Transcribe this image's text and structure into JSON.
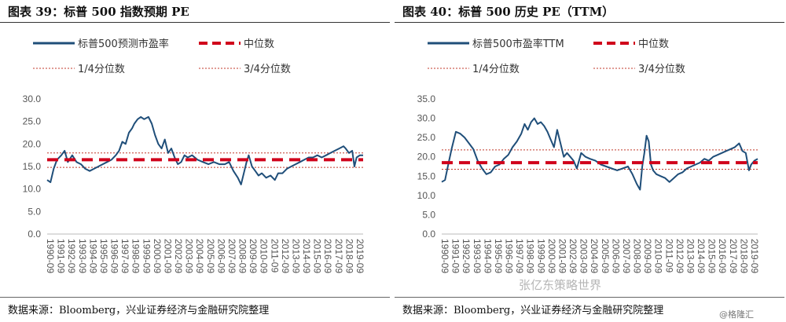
{
  "watermark": {
    "text": "张亿东策略世界",
    "credit": "@格隆汇"
  },
  "chart_data": [
    {
      "type": "line",
      "figure_title": "图表 39：标普 500 指数预期 PE",
      "source": "数据来源：Bloomberg，兴业证券经济与金融研究院整理",
      "legend": {
        "series": "标普500预测市盈率",
        "median": "中位数",
        "q1": "1/4分位数",
        "q3": "3/4分位数"
      },
      "ylim": [
        0,
        30
      ],
      "yticks": [
        "0.0",
        "5.0",
        "10.0",
        "15.0",
        "20.0",
        "25.0",
        "30.0"
      ],
      "xticks": [
        "1990-09",
        "1991-09",
        "1992-09",
        "1993-09",
        "1994-09",
        "1995-09",
        "1996-09",
        "1997-09",
        "1998-09",
        "1999-09",
        "2000-09",
        "2001-09",
        "2002-09",
        "2003-09",
        "2004-09",
        "2005-09",
        "2006-09",
        "2007-09",
        "2008-09",
        "2009-09",
        "2010-09",
        "2011-09",
        "2012-09",
        "2013-09",
        "2014-09",
        "2015-09",
        "2016-09",
        "2017-09",
        "2018-09",
        "2019-09"
      ],
      "xrange": [
        1990.7,
        2019.7
      ],
      "reference_lines": {
        "median": 16.5,
        "q1": 14.8,
        "q3": 18.0
      },
      "series": [
        {
          "name": "标普500预测市盈率",
          "x": [
            1990.7,
            1991.0,
            1991.3,
            1991.6,
            1992.0,
            1992.3,
            1992.6,
            1993.0,
            1993.4,
            1993.8,
            1994.2,
            1994.6,
            1995.0,
            1995.4,
            1995.8,
            1996.2,
            1996.6,
            1997.0,
            1997.3,
            1997.6,
            1997.9,
            1998.2,
            1998.5,
            1998.7,
            1999.0,
            1999.3,
            1999.6,
            2000.0,
            2000.3,
            2000.6,
            2000.9,
            2001.2,
            2001.5,
            2001.8,
            2002.1,
            2002.4,
            2002.7,
            2003.0,
            2003.3,
            2003.6,
            2004.0,
            2004.5,
            2005.0,
            2005.5,
            2006.0,
            2006.5,
            2007.0,
            2007.4,
            2007.8,
            2008.2,
            2008.5,
            2008.8,
            2009.0,
            2009.2,
            2009.5,
            2009.8,
            2010.1,
            2010.4,
            2010.8,
            2011.2,
            2011.6,
            2011.9,
            2012.3,
            2012.7,
            2013.1,
            2013.5,
            2013.9,
            2014.3,
            2014.7,
            2015.1,
            2015.5,
            2015.9,
            2016.3,
            2016.7,
            2017.1,
            2017.5,
            2017.9,
            2018.1,
            2018.4,
            2018.7,
            2018.9,
            2019.1,
            2019.4,
            2019.7
          ],
          "y": [
            12.0,
            11.5,
            14.5,
            16.5,
            17.5,
            18.5,
            16.0,
            17.5,
            16.0,
            15.5,
            14.5,
            14.0,
            14.5,
            15.0,
            15.5,
            16.0,
            16.5,
            17.5,
            18.5,
            20.5,
            20.0,
            22.5,
            23.5,
            24.5,
            25.5,
            26.0,
            25.5,
            26.0,
            24.5,
            22.0,
            20.0,
            19.0,
            21.0,
            18.0,
            19.0,
            17.0,
            15.5,
            16.0,
            17.5,
            17.0,
            17.5,
            16.5,
            16.0,
            15.5,
            16.0,
            15.5,
            15.5,
            16.0,
            14.0,
            12.5,
            11.0,
            14.0,
            16.0,
            17.5,
            15.0,
            14.0,
            13.0,
            13.5,
            12.5,
            13.0,
            12.0,
            13.5,
            13.5,
            14.5,
            15.0,
            15.5,
            16.0,
            16.5,
            17.0,
            17.0,
            17.5,
            17.0,
            17.5,
            18.0,
            18.5,
            19.0,
            19.5,
            19.0,
            18.0,
            18.5,
            15.0,
            17.0,
            17.5,
            17.5
          ]
        }
      ]
    },
    {
      "type": "line",
      "figure_title": "图表 40：标普 500 历史 PE（TTM）",
      "source": "数据来源：Bloomberg，兴业证券经济与金融研究院整理",
      "legend": {
        "series": "标普500市盈率TTM",
        "median": "中位数",
        "q1": "1/4分位数",
        "q3": "3/4分位数"
      },
      "ylim": [
        0,
        35
      ],
      "yticks": [
        "0.0",
        "5.0",
        "10.0",
        "15.0",
        "20.0",
        "25.0",
        "30.0",
        "35.0"
      ],
      "xticks": [
        "1990-09",
        "1991-09",
        "1992-09",
        "1993-09",
        "1994-09",
        "1995-09",
        "1996-09",
        "1997-09",
        "1998-09",
        "1999-09",
        "2000-09",
        "2001-09",
        "2002-09",
        "2003-09",
        "2004-09",
        "2005-09",
        "2006-09",
        "2007-09",
        "2008-09",
        "2009-09",
        "2010-09",
        "2011-09",
        "2012-09",
        "2013-09",
        "2014-09",
        "2015-09",
        "2016-09",
        "2017-09",
        "2018-09",
        "2019-09"
      ],
      "xrange": [
        1990.7,
        2019.7
      ],
      "reference_lines": {
        "median": 18.5,
        "q1": 16.8,
        "q3": 21.8
      },
      "series": [
        {
          "name": "标普500市盈率TTM",
          "x": [
            1990.7,
            1991.0,
            1991.3,
            1991.6,
            1992.0,
            1992.4,
            1992.8,
            1993.2,
            1993.6,
            1994.0,
            1994.4,
            1994.8,
            1995.2,
            1995.6,
            1996.0,
            1996.4,
            1996.8,
            1997.2,
            1997.6,
            1998.0,
            1998.3,
            1998.6,
            1998.9,
            1999.2,
            1999.5,
            1999.8,
            2000.1,
            2000.4,
            2000.7,
            2001.0,
            2001.3,
            2001.6,
            2001.9,
            2002.2,
            2002.5,
            2002.8,
            2003.1,
            2003.5,
            2003.9,
            2004.3,
            2004.8,
            2005.3,
            2005.8,
            2006.3,
            2006.8,
            2007.3,
            2007.8,
            2008.2,
            2008.6,
            2008.9,
            2009.1,
            2009.3,
            2009.5,
            2009.7,
            2009.9,
            2010.1,
            2010.4,
            2010.8,
            2011.2,
            2011.6,
            2012.0,
            2012.4,
            2012.8,
            2013.2,
            2013.6,
            2014.0,
            2014.4,
            2014.8,
            2015.2,
            2015.6,
            2016.0,
            2016.4,
            2016.8,
            2017.2,
            2017.6,
            2018.0,
            2018.3,
            2018.6,
            2018.9,
            2019.1,
            2019.4,
            2019.7
          ],
          "y": [
            13.5,
            14.0,
            18.0,
            22.0,
            26.5,
            26.0,
            25.0,
            23.5,
            22.0,
            19.0,
            17.0,
            15.5,
            16.0,
            17.5,
            18.0,
            19.5,
            20.5,
            22.5,
            24.0,
            26.0,
            28.5,
            27.0,
            29.0,
            30.0,
            28.5,
            29.0,
            28.0,
            26.5,
            24.5,
            22.5,
            27.0,
            23.5,
            20.0,
            21.0,
            20.0,
            19.0,
            17.0,
            21.0,
            20.0,
            19.5,
            19.0,
            18.0,
            17.5,
            17.0,
            16.5,
            17.0,
            17.5,
            15.5,
            13.0,
            11.5,
            17.5,
            21.0,
            25.5,
            24.0,
            18.0,
            16.5,
            15.5,
            15.0,
            14.5,
            13.5,
            14.5,
            15.5,
            16.0,
            17.0,
            17.5,
            18.0,
            18.5,
            19.5,
            19.0,
            20.0,
            20.5,
            21.0,
            21.5,
            22.0,
            22.5,
            23.5,
            21.5,
            21.0,
            16.5,
            18.0,
            19.0,
            19.5
          ]
        }
      ]
    }
  ],
  "style": {
    "series_color": "#1f4e79",
    "median_color": "#d0021b",
    "quartile_color": "#c0392b"
  }
}
